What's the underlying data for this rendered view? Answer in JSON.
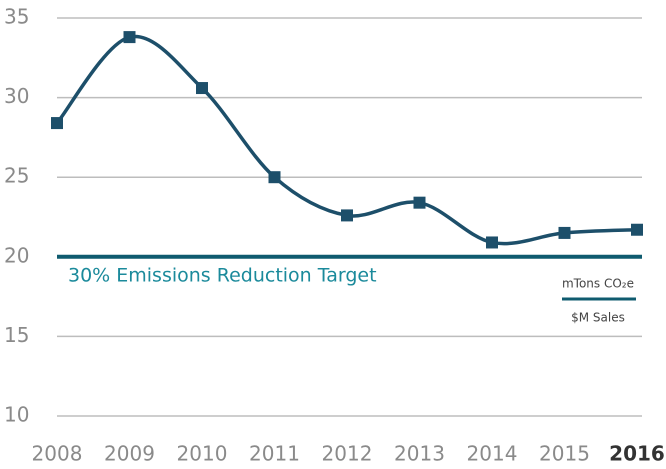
{
  "chart_data": {
    "type": "line",
    "categories": [
      "2008",
      "2009",
      "2010",
      "2011",
      "2012",
      "2013",
      "2014",
      "2015",
      "2016"
    ],
    "series": [
      {
        "name": "mTons CO₂e / $M Sales",
        "color": "#1d4f6a",
        "values": [
          28.4,
          33.8,
          30.6,
          25,
          22.6,
          23.4,
          20.9,
          21.5,
          21.7
        ]
      }
    ],
    "ylim": [
      10,
      35
    ],
    "yticks": [
      10,
      15,
      20,
      25,
      30,
      35
    ],
    "grid": true,
    "target": 20,
    "target_color": "#0f5b6f",
    "target_label": "30% Emissions Reduction Target",
    "unit_numerator": "mTons CO₂e",
    "unit_denominator": "$M Sales"
  }
}
